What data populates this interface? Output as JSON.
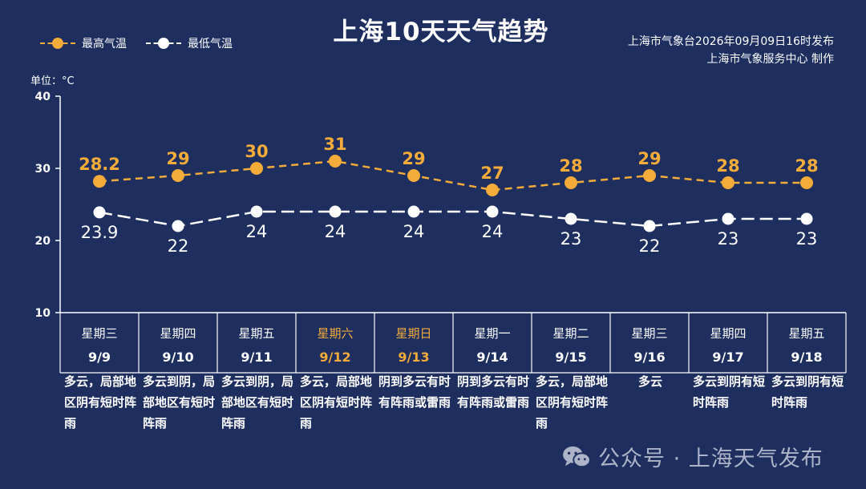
{
  "title": "上海10天天气趋势",
  "issuer": {
    "line1": "上海市气象台2026年09月09日16时发布",
    "line2": "上海市气象服务中心 制作"
  },
  "unit_label": "单位：°C",
  "watermark": {
    "icon": "wechat-icon",
    "text": "公众号 · 上海天气发布"
  },
  "colors": {
    "background": "#1d2e5f",
    "high": "#f3ab3a",
    "low": "#ffffff",
    "weekend_highlight": "#f3ab3a"
  },
  "chart_data": {
    "type": "line",
    "title": "上海10天天气趋势",
    "ylabel": "单位：°C",
    "ylim": [
      10,
      40
    ],
    "yticks": [
      10,
      20,
      30,
      40
    ],
    "grid": false,
    "legend": "top-left",
    "categories": [
      "9/9",
      "9/10",
      "9/11",
      "9/12",
      "9/13",
      "9/14",
      "9/15",
      "9/16",
      "9/17",
      "9/18"
    ],
    "weekdays": [
      "星期三",
      "星期四",
      "星期五",
      "星期六",
      "星期日",
      "星期一",
      "星期二",
      "星期三",
      "星期四",
      "星期五"
    ],
    "weekend": [
      false,
      false,
      false,
      true,
      true,
      false,
      false,
      false,
      false,
      false
    ],
    "weather": [
      "多云，局部地区阴有短时阵雨",
      "多云到阴，局部地区有短时阵雨",
      "多云到阴，局部地区有短时阵雨",
      "多云，局部地区阴有短时阵雨",
      "阴到多云有时有阵雨或雷雨",
      "阴到多云有时有阵雨或雷雨",
      "多云，局部地区阴有短时阵雨",
      "多云",
      "多云到阴有短时阵雨",
      "多云到阴有短时阵雨"
    ],
    "series": [
      {
        "name": "最高气温",
        "values": [
          28.2,
          29,
          30,
          31,
          29,
          27,
          28,
          29,
          28,
          28
        ],
        "labels": [
          "28.2",
          "29",
          "30",
          "31",
          "29",
          "27",
          "28",
          "29",
          "28",
          "28"
        ]
      },
      {
        "name": "最低气温",
        "values": [
          23.9,
          22,
          24,
          24,
          24,
          24,
          23,
          22,
          23,
          23
        ],
        "labels": [
          "23.9",
          "22",
          "24",
          "24",
          "24",
          "24",
          "23",
          "22",
          "23",
          "23"
        ]
      }
    ]
  }
}
